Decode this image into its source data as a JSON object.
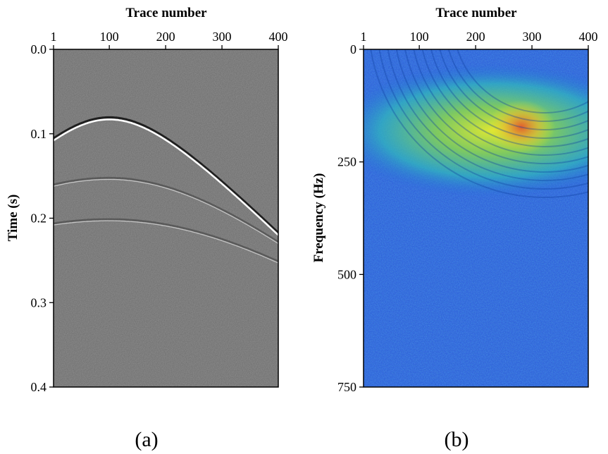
{
  "chart_data": [
    {
      "type": "heatmap",
      "panel_label": "(a)",
      "xlabel": "Trace number",
      "ylabel": "Time (s)",
      "x_ticks": [
        1,
        100,
        200,
        300,
        400
      ],
      "x_tick_labels": [
        "1",
        "100",
        "200",
        "300",
        "400"
      ],
      "y_ticks": [
        0.0,
        0.1,
        0.2,
        0.3,
        0.4
      ],
      "y_tick_labels": [
        "0.0",
        "0.1",
        "0.2",
        "0.3",
        "0.4"
      ],
      "xlim": [
        1,
        400
      ],
      "ylim": [
        0.0,
        0.4
      ],
      "colormap": "gray",
      "background_color": "#6b6b6b",
      "description_values": {
        "events": [
          {
            "name": "event-1",
            "apex_trace": 100,
            "apex_time": 0.083,
            "time_at_trace_1": 0.108,
            "time_at_trace_400": 0.22,
            "strength": 1.0
          },
          {
            "name": "event-2",
            "apex_trace": 100,
            "apex_time": 0.154,
            "time_at_trace_1": 0.162,
            "time_at_trace_400": 0.23,
            "strength": 0.45
          },
          {
            "name": "event-3",
            "apex_trace": 100,
            "apex_time": 0.203,
            "time_at_trace_1": 0.208,
            "time_at_trace_400": 0.253,
            "strength": 0.35
          }
        ]
      }
    },
    {
      "type": "heatmap",
      "panel_label": "(b)",
      "xlabel": "Trace number",
      "ylabel": "Frequency (Hz)",
      "x_ticks": [
        1,
        100,
        200,
        300,
        400
      ],
      "x_tick_labels": [
        "1",
        "100",
        "200",
        "300",
        "400"
      ],
      "y_ticks": [
        0,
        250,
        500,
        750
      ],
      "y_tick_labels": [
        "0",
        "250",
        "500",
        "750"
      ],
      "xlim": [
        1,
        400
      ],
      "ylim": [
        0,
        750
      ],
      "colormap": "jet",
      "energy_peak": {
        "trace": 285,
        "frequency_hz": 175
      },
      "energy_band_hz": [
        90,
        300
      ]
    }
  ]
}
